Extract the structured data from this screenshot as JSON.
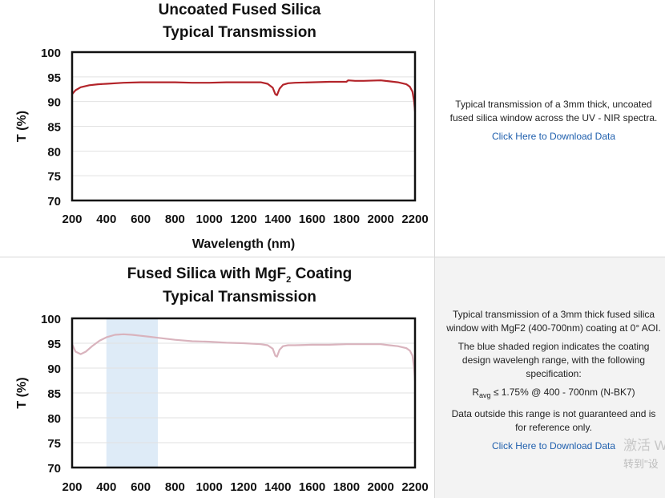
{
  "chart_data": [
    {
      "type": "line",
      "title": "Uncoated Fused Silica",
      "subtitle": "Typical Transmission",
      "xlabel": "Wavelength (nm)",
      "ylabel": "T (%)",
      "xlim": [
        200,
        2200
      ],
      "ylim": [
        70,
        100
      ],
      "xticks": [
        200,
        400,
        600,
        800,
        1000,
        1200,
        1400,
        1600,
        1800,
        2000,
        2200
      ],
      "yticks": [
        70,
        75,
        80,
        85,
        90,
        95,
        100
      ],
      "grid": true,
      "series": [
        {
          "color": "#b3242a",
          "x": [
            200,
            220,
            250,
            300,
            350,
            400,
            500,
            600,
            700,
            800,
            900,
            1000,
            1100,
            1200,
            1300,
            1340,
            1370,
            1385,
            1395,
            1410,
            1430,
            1460,
            1500,
            1600,
            1700,
            1800,
            1810,
            1850,
            1900,
            2000,
            2050,
            2100,
            2150,
            2170,
            2185,
            2195,
            2200
          ],
          "y": [
            91.5,
            92.3,
            92.9,
            93.3,
            93.5,
            93.6,
            93.8,
            93.9,
            93.9,
            93.9,
            93.8,
            93.8,
            93.9,
            93.9,
            93.9,
            93.6,
            92.8,
            91.5,
            91.3,
            92.6,
            93.4,
            93.7,
            93.8,
            93.9,
            94.0,
            94.0,
            94.3,
            94.2,
            94.2,
            94.3,
            94.1,
            93.9,
            93.5,
            93.0,
            92.0,
            90.0,
            88.0
          ]
        }
      ]
    },
    {
      "type": "line",
      "title": "Fused Silica with MgF",
      "title_sub": "2",
      "title_suffix": " Coating",
      "subtitle": "Typical Transmission",
      "ylabel": "T (%)",
      "xlim": [
        200,
        2200
      ],
      "ylim": [
        70,
        100
      ],
      "xticks": [
        200,
        400,
        600,
        800,
        1000,
        1200,
        1400,
        1600,
        1800,
        2000,
        2200
      ],
      "yticks": [
        70,
        75,
        80,
        85,
        90,
        95,
        100
      ],
      "grid": true,
      "shaded_range": [
        400,
        700
      ],
      "shaded_color": "#deebf7",
      "series": [
        {
          "color": "#d9b3bd",
          "x": [
            200,
            220,
            250,
            280,
            320,
            360,
            400,
            450,
            500,
            550,
            600,
            650,
            700,
            800,
            900,
            1000,
            1100,
            1200,
            1300,
            1340,
            1370,
            1385,
            1395,
            1410,
            1430,
            1460,
            1500,
            1600,
            1700,
            1800,
            1900,
            2000,
            2050,
            2100,
            2150,
            2170,
            2185,
            2195,
            2200
          ],
          "y": [
            94.8,
            93.3,
            92.8,
            93.3,
            94.5,
            95.5,
            96.2,
            96.7,
            96.8,
            96.7,
            96.5,
            96.3,
            96.1,
            95.7,
            95.4,
            95.3,
            95.1,
            95.0,
            94.8,
            94.6,
            93.9,
            92.5,
            92.3,
            93.7,
            94.4,
            94.6,
            94.6,
            94.7,
            94.7,
            94.8,
            94.8,
            94.8,
            94.6,
            94.4,
            94.0,
            93.5,
            92.5,
            90.0,
            87.5
          ]
        }
      ]
    }
  ],
  "descriptions": [
    {
      "paragraphs": [
        "Typical transmission of a 3mm thick, uncoated fused silica window across the UV - NIR spectra."
      ],
      "link": "Click Here to Download Data"
    },
    {
      "paragraphs": [
        "Typical transmission of a 3mm thick fused silica window with MgF2 (400-700nm) coating at 0° AOI.",
        "The blue shaded region indicates the coating design wavelengh range, with the following specification:"
      ],
      "spec_main": "R",
      "spec_sub": "avg",
      "spec_rest": " ≤ 1.75% @ 400 - 700nm (N-BK7)",
      "after": "Data outside this range is not guaranteed and is for reference only.",
      "link": "Click Here to Download Data"
    }
  ],
  "watermark": {
    "line1": "激活 W",
    "line2": "转到\"设"
  }
}
